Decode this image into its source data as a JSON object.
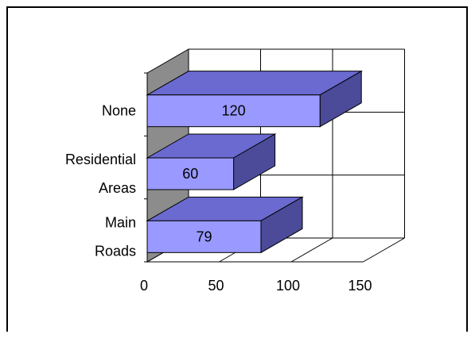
{
  "chart_data": {
    "type": "bar",
    "orientation": "horizontal",
    "style": "3d",
    "categories": [
      "None",
      "Residential Areas",
      "Main Roads"
    ],
    "category_lines": [
      [
        "None"
      ],
      [
        "Residential",
        "Areas"
      ],
      [
        "Main",
        "Roads"
      ]
    ],
    "values": [
      120,
      60,
      79
    ],
    "data_labels": [
      "120",
      "60",
      "79"
    ],
    "title": "",
    "xlabel": "",
    "ylabel": "",
    "xlim": [
      0,
      150
    ],
    "xticks": [
      0,
      50,
      100,
      150
    ],
    "xtick_labels": [
      "0",
      "50",
      "100",
      "150"
    ],
    "grid": true,
    "legend": "none",
    "colors": {
      "bar_front": "#9999ff",
      "bar_top": "#6a6ad0",
      "bar_side": "#4b4b9a",
      "wall": "#8c8c8c",
      "gridline": "#000000"
    }
  }
}
